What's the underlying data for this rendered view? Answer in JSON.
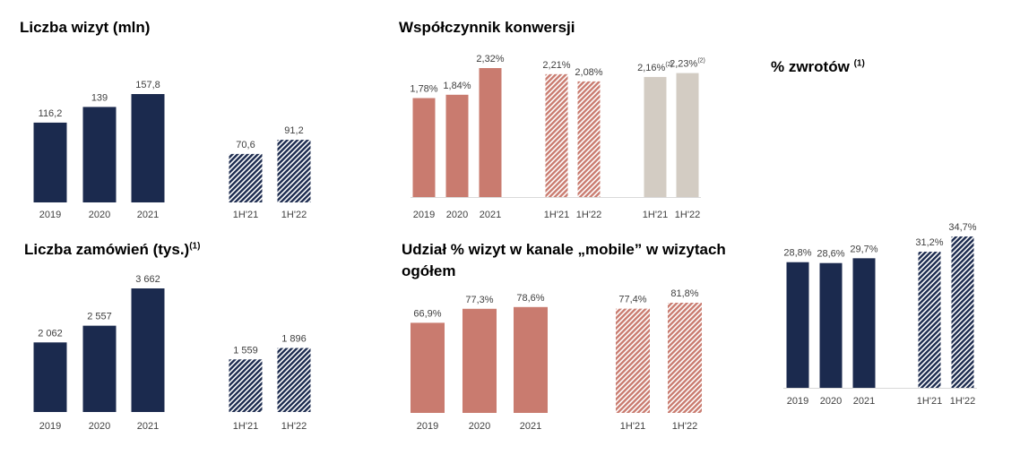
{
  "colors": {
    "navy": "#1b2a4e",
    "salmon": "#c97b6f",
    "beige": "#d3ccc3",
    "axis": "#d9d9d9",
    "label": "#404040",
    "white": "#ffffff"
  },
  "chart_data": [
    {
      "id": "visits",
      "type": "bar",
      "title": "Liczba wizyt (mln)",
      "title_sup": "",
      "categories": [
        "2019",
        "2020",
        "2021",
        "1H'21",
        "1H'22"
      ],
      "values": [
        116.2,
        139,
        157.8,
        70.6,
        91.2
      ],
      "value_labels": [
        "116,2",
        "139",
        "157,8",
        "70,6",
        "91,2"
      ],
      "styles": [
        "solid",
        "solid",
        "solid",
        "hatched",
        "hatched"
      ],
      "color": "navy",
      "ylim": [
        0,
        157.8
      ]
    },
    {
      "id": "conversion",
      "type": "bar",
      "title": "Współczynnik konwersji",
      "title_sup": "",
      "categories": [
        "2019",
        "2020",
        "2021",
        "1H'21",
        "1H'22",
        "1H'21",
        "1H'22"
      ],
      "values": [
        1.78,
        1.84,
        2.32,
        2.21,
        2.08,
        2.16,
        2.23
      ],
      "value_labels": [
        "1,78%",
        "1,84%",
        "2,32%",
        "2,21%",
        "2,08%",
        "2,16%",
        "2,23%"
      ],
      "label_sups": [
        "",
        "",
        "",
        "",
        "",
        "(2)",
        "(2)"
      ],
      "styles": [
        "solid",
        "solid",
        "solid",
        "hatched",
        "hatched",
        "solid",
        "solid"
      ],
      "colors": [
        "salmon",
        "salmon",
        "salmon",
        "salmon",
        "salmon",
        "beige",
        "beige"
      ],
      "ylim": [
        0,
        2.32
      ]
    },
    {
      "id": "orders",
      "type": "bar",
      "title": "Liczba zamówień (tys.)",
      "title_sup": "(1)",
      "categories": [
        "2019",
        "2020",
        "2021",
        "1H'21",
        "1H'22"
      ],
      "values": [
        2062,
        2557,
        3662,
        1559,
        1896
      ],
      "value_labels": [
        "2 062",
        "2 557",
        "3 662",
        "1 559",
        "1 896"
      ],
      "styles": [
        "solid",
        "solid",
        "solid",
        "hatched",
        "hatched"
      ],
      "color": "navy",
      "ylim": [
        0,
        3662
      ]
    },
    {
      "id": "mobile",
      "type": "bar",
      "title": "Udział % wizyt w kanale „mobile” w wizytach",
      "title_line2": "ogółem",
      "title_sup": "",
      "categories": [
        "2019",
        "2020",
        "2021",
        "1H'21",
        "1H'22"
      ],
      "values": [
        66.9,
        77.3,
        78.6,
        77.4,
        81.8
      ],
      "value_labels": [
        "66,9%",
        "77,3%",
        "78,6%",
        "77,4%",
        "81,8%"
      ],
      "styles": [
        "solid",
        "solid",
        "solid",
        "hatched",
        "hatched"
      ],
      "color": "salmon",
      "ylim": [
        0,
        81.8
      ]
    },
    {
      "id": "returns",
      "type": "bar",
      "title": "% zwrotów",
      "title_sup": "(1)",
      "categories": [
        "2019",
        "2020",
        "2021",
        "1H'21",
        "1H'22"
      ],
      "values": [
        28.8,
        28.6,
        29.7,
        31.2,
        34.7
      ],
      "value_labels": [
        "28,8%",
        "28,6%",
        "29,7%",
        "31,2%",
        "34,7%"
      ],
      "styles": [
        "solid",
        "solid",
        "solid",
        "hatched",
        "hatched"
      ],
      "color": "navy",
      "ylim": [
        0,
        34.7
      ]
    }
  ]
}
